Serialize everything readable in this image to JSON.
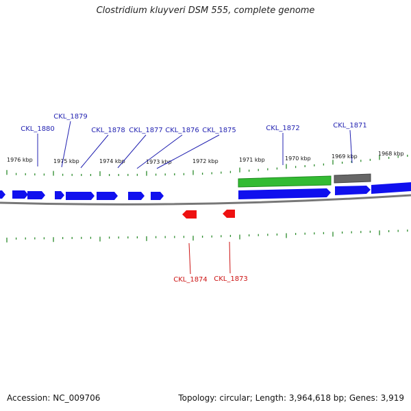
{
  "title": "Clostridium kluyveri DSM 555, complete genome",
  "accession": "Accession: NC_009706",
  "summary": "Topology: circular; Length: 3,964,618 bp; Genes: 3,919",
  "colors": {
    "plus_gene": "#1010ee",
    "minus_gene": "#ee1111",
    "green_feature": "#33bb33",
    "gray_feature": "#666666",
    "backbone": "#777777",
    "tick": "#2a8a2a",
    "plus_label": "#1f1fb0",
    "minus_label": "#cc1111"
  },
  "ticks": [
    "1976 kbp",
    "1975 kbp",
    "1974 kbp",
    "1973 kbp",
    "1972 kbp",
    "1971 kbp",
    "1970 kbp",
    "1969 kbp",
    "1968 kbp"
  ],
  "plus_gene_labels": [
    "CKL_1880",
    "CKL_1879",
    "CKL_1878",
    "CKL_1877",
    "CKL_1876",
    "CKL_1875",
    "CKL_1872",
    "CKL_1871"
  ],
  "minus_gene_labels": [
    "CKL_1874",
    "CKL_1873"
  ]
}
